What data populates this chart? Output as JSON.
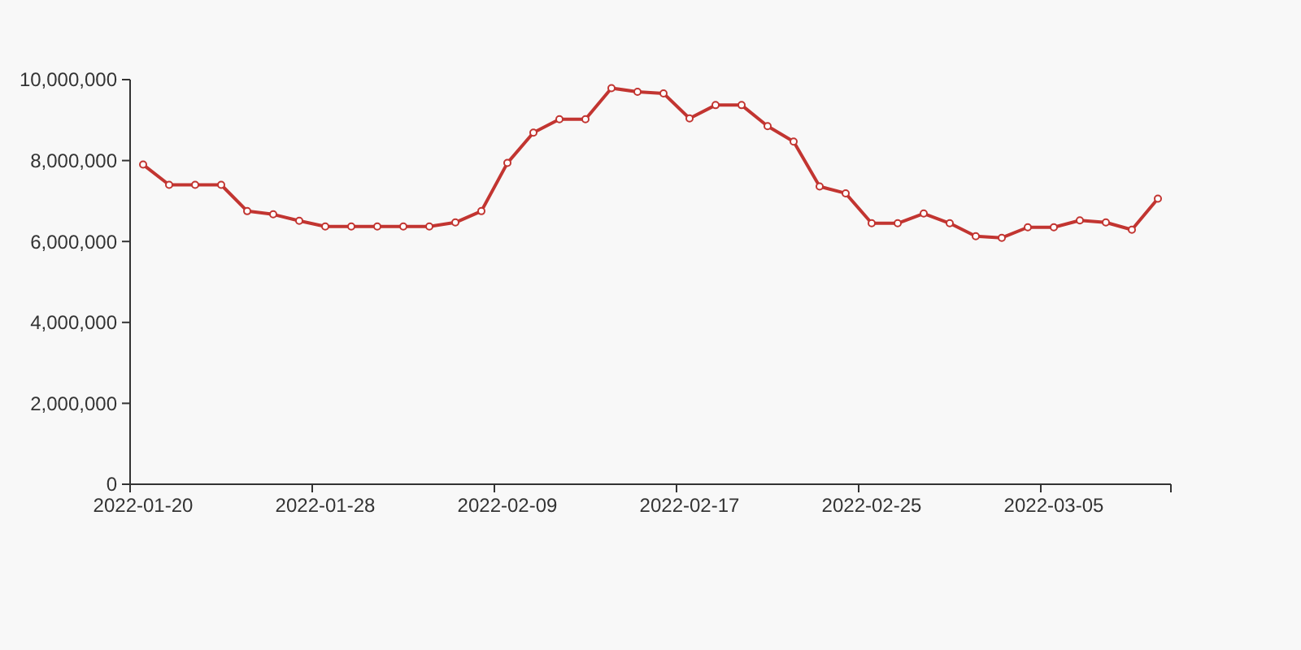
{
  "chart_data": {
    "type": "line",
    "categories": [
      "2022-01-20",
      null,
      null,
      null,
      null,
      null,
      null,
      "2022-01-28",
      null,
      null,
      null,
      null,
      null,
      null,
      "2022-02-09",
      null,
      null,
      null,
      null,
      null,
      null,
      "2022-02-17",
      null,
      null,
      null,
      null,
      null,
      null,
      "2022-02-25",
      null,
      null,
      null,
      null,
      null,
      null,
      "2022-03-05",
      null,
      null,
      null,
      null
    ],
    "series": [
      {
        "color": "#c23531",
        "values": [
          7900000,
          7400000,
          7400000,
          7400000,
          6750000,
          6670000,
          6510000,
          6370000,
          6370000,
          6370000,
          6370000,
          6370000,
          6470000,
          6750000,
          7940000,
          8690000,
          9020000,
          9020000,
          9790000,
          9700000,
          9660000,
          9040000,
          9370000,
          9370000,
          8850000,
          8470000,
          7360000,
          7190000,
          6450000,
          6450000,
          6690000,
          6450000,
          6130000,
          6090000,
          6350000,
          6350000,
          6520000,
          6470000,
          6290000,
          7060000
        ]
      }
    ],
    "ylim": [
      0,
      10000000
    ],
    "yticks": [
      {
        "value": 0,
        "label": "0"
      },
      {
        "value": 2000000,
        "label": "2,000,000"
      },
      {
        "value": 4000000,
        "label": "4,000,000"
      },
      {
        "value": 6000000,
        "label": "6,000,000"
      },
      {
        "value": 8000000,
        "label": "8,000,000"
      },
      {
        "value": 10000000,
        "label": "10,000,000"
      }
    ],
    "marker": "circle",
    "line_style": "solid",
    "grid": false
  }
}
